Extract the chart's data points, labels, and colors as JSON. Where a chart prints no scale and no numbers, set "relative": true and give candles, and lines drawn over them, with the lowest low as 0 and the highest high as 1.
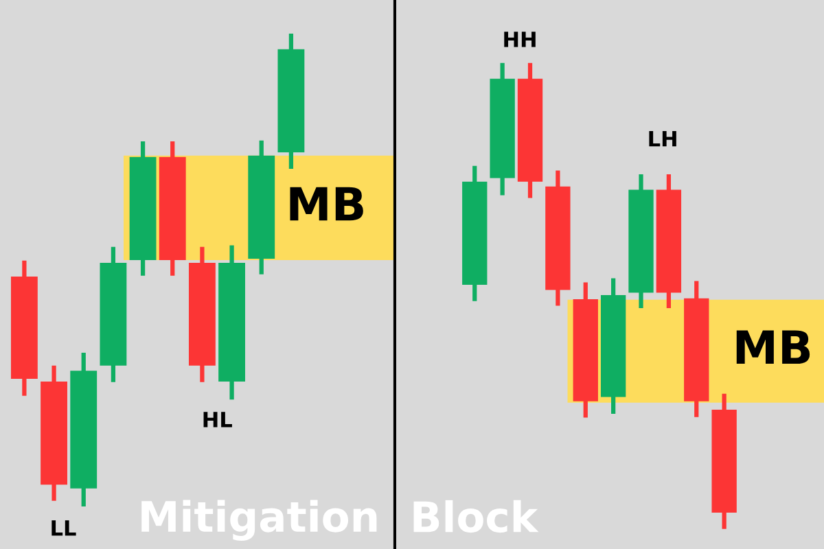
{
  "chart_data": [
    {
      "type": "candlestick",
      "title": "Mitigation",
      "relative": true,
      "categories": [
        null,
        null,
        null,
        null,
        null,
        null,
        null,
        null,
        null,
        null
      ],
      "ohlc": [
        [
          0.486,
          0.52,
          0.234,
          0.27
        ],
        [
          0.264,
          0.298,
          0.012,
          0.046
        ],
        [
          0.038,
          0.325,
          0,
          0.287
        ],
        [
          0.298,
          0.549,
          0.263,
          0.515
        ],
        [
          0.521,
          0.772,
          0.488,
          0.739
        ],
        [
          0.739,
          0.772,
          0.488,
          0.521
        ],
        [
          0.515,
          0.549,
          0.263,
          0.298
        ],
        [
          0.264,
          0.552,
          0.226,
          0.515
        ],
        [
          0.524,
          0.774,
          0.491,
          0.742
        ],
        [
          0.749,
          1,
          0.714,
          0.967
        ]
      ],
      "bands": [
        {
          "axis": "y",
          "from": 0.521,
          "to": 0.742,
          "label": "MB",
          "color": "#fddc5c"
        }
      ],
      "annotations": [
        "LL",
        "HL"
      ]
    },
    {
      "type": "candlestick",
      "title": "Block",
      "relative": true,
      "categories": [
        null,
        null,
        null,
        null,
        null,
        null,
        null,
        null,
        null,
        null
      ],
      "ohlc": [
        [
          0.524,
          0.779,
          0.489,
          0.745
        ],
        [
          0.753,
          1,
          0.716,
          0.966
        ],
        [
          0.966,
          1,
          0.71,
          0.745
        ],
        [
          0.735,
          0.769,
          0.479,
          0.513
        ],
        [
          0.493,
          0.529,
          0.239,
          0.274
        ],
        [
          0.283,
          0.538,
          0.247,
          0.502
        ],
        [
          0.507,
          0.761,
          0.474,
          0.728
        ],
        [
          0.728,
          0.761,
          0.474,
          0.507
        ],
        [
          0.495,
          0.532,
          0.24,
          0.274
        ],
        [
          0.256,
          0.29,
          0,
          0.035
        ]
      ],
      "bands": [
        {
          "axis": "y",
          "from": 0.271,
          "to": 0.492,
          "label": "MB",
          "color": "#fddc5c"
        }
      ],
      "annotations": [
        "HH",
        "LH"
      ]
    }
  ]
}
